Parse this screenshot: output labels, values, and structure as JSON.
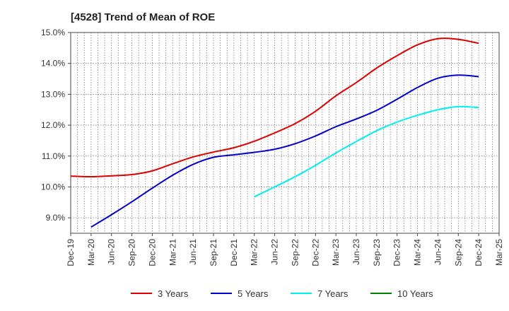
{
  "chart_data": {
    "type": "line",
    "title": "[4528]  Trend of Mean of ROE",
    "xlabel": "",
    "ylabel": "",
    "x": [
      "Dec-19",
      "Mar-20",
      "Jun-20",
      "Sep-20",
      "Dec-20",
      "Mar-21",
      "Jun-21",
      "Sep-21",
      "Dec-21",
      "Mar-22",
      "Jun-22",
      "Sep-22",
      "Dec-22",
      "Mar-23",
      "Jun-23",
      "Sep-23",
      "Dec-23",
      "Mar-24",
      "Jun-24",
      "Sep-24",
      "Dec-24",
      "Mar-25"
    ],
    "x_tick_labels": [
      "Dec-19",
      "Mar-20",
      "Jun-20",
      "Sep-20",
      "Dec-20",
      "Mar-21",
      "Jun-21",
      "Sep-21",
      "Dec-21",
      "Mar-22",
      "Jun-22",
      "Sep-22",
      "Dec-22",
      "Mar-23",
      "Jun-23",
      "Sep-23",
      "Dec-23",
      "Mar-24",
      "Jun-24",
      "Sep-24",
      "Dec-24",
      "Mar-25"
    ],
    "y_tick_labels": [
      "9.0%",
      "10.0%",
      "11.0%",
      "12.0%",
      "13.0%",
      "14.0%",
      "15.0%"
    ],
    "y_ticks": [
      9,
      10,
      11,
      12,
      13,
      14,
      15
    ],
    "ylim": [
      8.5,
      15.0
    ],
    "grid": true,
    "legend_position": "bottom",
    "series": [
      {
        "name": "3 Years",
        "color": "#dd0000",
        "values": [
          10.35,
          10.33,
          10.36,
          10.4,
          10.52,
          10.75,
          10.97,
          11.13,
          11.27,
          11.48,
          11.75,
          12.05,
          12.45,
          12.95,
          13.38,
          13.85,
          14.25,
          14.6,
          14.8,
          14.78,
          14.65,
          null
        ]
      },
      {
        "name": "5 Years",
        "color": "#0000cc",
        "values": [
          null,
          8.7,
          9.1,
          9.52,
          9.96,
          10.38,
          10.73,
          10.96,
          11.04,
          11.12,
          11.22,
          11.4,
          11.65,
          11.95,
          12.2,
          12.48,
          12.84,
          13.22,
          13.52,
          13.62,
          13.57,
          null
        ]
      },
      {
        "name": "7 Years",
        "color": "#00eeee",
        "values": [
          null,
          null,
          null,
          null,
          null,
          null,
          null,
          null,
          null,
          9.68,
          10.0,
          10.33,
          10.7,
          11.1,
          11.47,
          11.82,
          12.1,
          12.32,
          12.5,
          12.6,
          12.57,
          null
        ]
      },
      {
        "name": "10 Years",
        "color": "#008000",
        "values": [
          null,
          null,
          null,
          null,
          null,
          null,
          null,
          null,
          null,
          null,
          null,
          null,
          null,
          null,
          null,
          null,
          null,
          null,
          null,
          null,
          null,
          null
        ]
      }
    ]
  }
}
